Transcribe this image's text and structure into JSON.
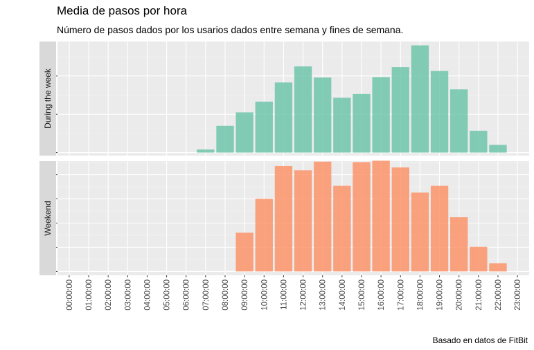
{
  "title": "Media de pasos por hora",
  "subtitle": "Número de pasos dados por los usarios dados entre semana y fines de semana.",
  "caption": "Basado en datos de FitBit",
  "chart_data": {
    "type": "bar",
    "title": "Media de pasos por hora",
    "subtitle": "Número de pasos dados por los usarios dados entre semana y fines de semana.",
    "xlabel": "",
    "ylabel": "",
    "categories": [
      "00:00:00",
      "01:00:00",
      "02:00:00",
      "03:00:00",
      "04:00:00",
      "05:00:00",
      "06:00:00",
      "07:00:00",
      "08:00:00",
      "09:00:00",
      "10:00:00",
      "11:00:00",
      "12:00:00",
      "13:00:00",
      "14:00:00",
      "15:00:00",
      "16:00:00",
      "17:00:00",
      "18:00:00",
      "19:00:00",
      "20:00:00",
      "21:00:00",
      "22:00:00",
      "23:00:00"
    ],
    "grid": true,
    "facets": [
      {
        "name": "During the week",
        "color": "#66c2a5",
        "ylim": [
          -8,
          290
        ],
        "yticks": [
          0,
          100,
          200
        ],
        "values": [
          0,
          0,
          0,
          0,
          0,
          0,
          0,
          8,
          70,
          105,
          133,
          183,
          225,
          196,
          143,
          153,
          197,
          223,
          280,
          213,
          165,
          57,
          20,
          0
        ]
      },
      {
        "name": "Weekend",
        "color": "#fc8d62",
        "ylim": [
          -8,
          228
        ],
        "yticks": [
          0,
          50,
          100,
          150,
          200
        ],
        "values": [
          0,
          0,
          0,
          0,
          0,
          0,
          0,
          0,
          0,
          80,
          150,
          218,
          209,
          227,
          177,
          226,
          229,
          215,
          163,
          177,
          112,
          51,
          17,
          0
        ]
      }
    ]
  }
}
